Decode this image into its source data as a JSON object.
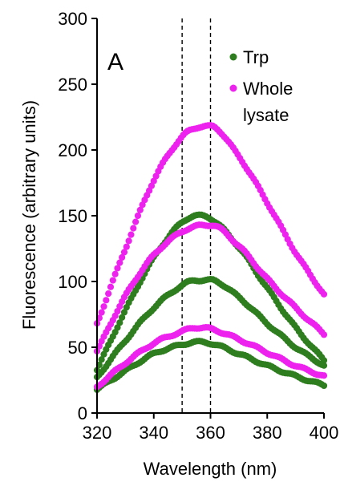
{
  "chart_data": {
    "type": "scatter",
    "panel_label": "A",
    "xlabel": "Wavelength (nm)",
    "ylabel": "Fluorescence (arbitrary units)",
    "xlim": [
      320,
      400
    ],
    "ylim": [
      0,
      300
    ],
    "xticks": [
      320,
      340,
      360,
      380,
      400
    ],
    "yticks": [
      0,
      50,
      100,
      150,
      200,
      250,
      300
    ],
    "grid": false,
    "legend_position": "top-right",
    "reference_lines_x": [
      350,
      360
    ],
    "legend": [
      {
        "label_lines": [
          "Trp"
        ],
        "color": "#2e7d1f"
      },
      {
        "label_lines": [
          "Whole",
          "lysate"
        ],
        "color": "#ee22ee"
      }
    ],
    "series": [
      {
        "group": "Trp",
        "color": "#2e7d1f",
        "x": [
          320,
          330,
          340,
          350,
          355,
          360,
          370,
          380,
          390,
          400
        ],
        "y": [
          33,
          78,
          118,
          145,
          150,
          148,
          126,
          95,
          65,
          40
        ]
      },
      {
        "group": "Trp",
        "color": "#2e7d1f",
        "x": [
          320,
          330,
          340,
          350,
          355,
          360,
          370,
          380,
          390,
          400
        ],
        "y": [
          27,
          55,
          80,
          97,
          101,
          101,
          88,
          68,
          50,
          36
        ]
      },
      {
        "group": "Trp",
        "color": "#2e7d1f",
        "x": [
          320,
          330,
          340,
          350,
          355,
          360,
          370,
          380,
          390,
          400
        ],
        "y": [
          18,
          32,
          45,
          52,
          54,
          53,
          45,
          36,
          28,
          21
        ]
      },
      {
        "group": "Whole lysate",
        "color": "#ee22ee",
        "x": [
          320,
          330,
          340,
          350,
          355,
          360,
          370,
          380,
          390,
          400
        ],
        "y": [
          68,
          125,
          177,
          210,
          217,
          218,
          195,
          160,
          122,
          90
        ]
      },
      {
        "group": "Whole lysate",
        "color": "#ee22ee",
        "x": [
          320,
          330,
          340,
          350,
          355,
          360,
          370,
          380,
          390,
          400
        ],
        "y": [
          47,
          89,
          120,
          138,
          142,
          143,
          127,
          102,
          80,
          60
        ]
      },
      {
        "group": "Whole lysate",
        "color": "#ee22ee",
        "x": [
          320,
          330,
          340,
          350,
          355,
          360,
          370,
          380,
          390,
          400
        ],
        "y": [
          20,
          38,
          53,
          62,
          65,
          64,
          56,
          46,
          36,
          28
        ]
      }
    ]
  }
}
